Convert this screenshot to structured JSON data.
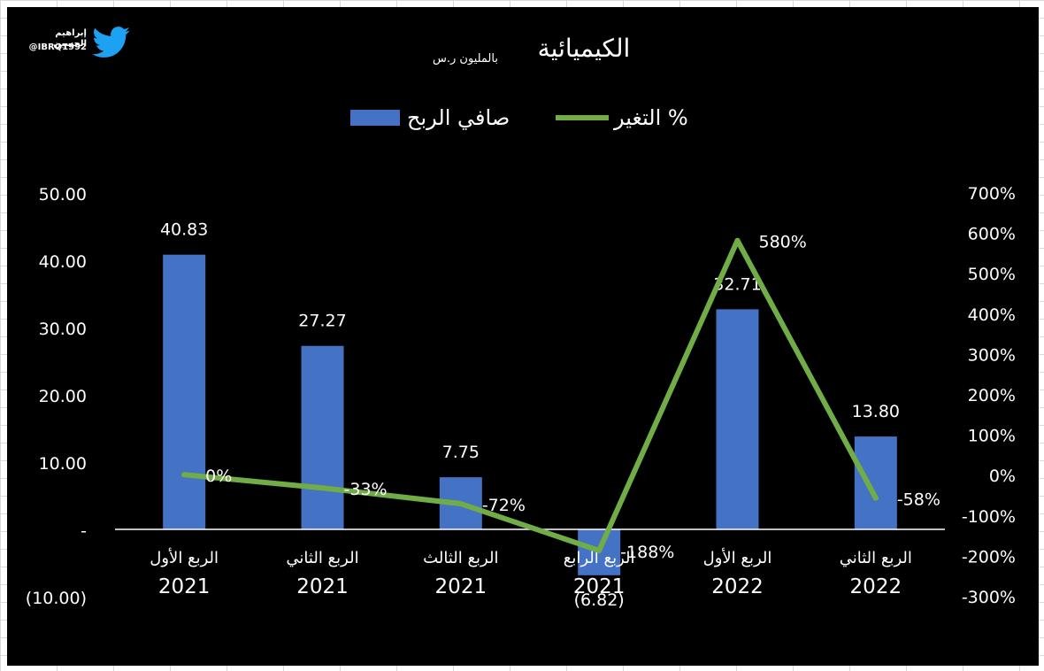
{
  "credit": {
    "name": "إبراهيم الحسين",
    "handle": "@IBRQ1992",
    "icon": "twitter-bird-icon",
    "icon_color": "#1DA1F2"
  },
  "chart_data": {
    "type": "bar",
    "title": "الكيميائية",
    "subtitle": "بالمليون ر.س",
    "categories": [
      [
        "الربع الأول",
        "2021"
      ],
      [
        "الربع الثاني",
        "2021"
      ],
      [
        "الربع الثالث",
        "2021"
      ],
      [
        "الربع الرابع",
        "2021"
      ],
      [
        "الربع الأول",
        "2022"
      ],
      [
        "الربع الثاني",
        "2022"
      ]
    ],
    "series": [
      {
        "name": "صافي الربح",
        "kind": "bar",
        "axis": "left",
        "color": "#4472C4",
        "values": [
          40.83,
          27.27,
          7.75,
          -6.82,
          32.71,
          13.8
        ],
        "labels": [
          "40.83",
          "27.27",
          "7.75",
          "(6.82)",
          "32.71",
          "13.80"
        ]
      },
      {
        "name": "التغير %",
        "kind": "line",
        "axis": "right",
        "color": "#70AD47",
        "values": [
          0,
          -33,
          -72,
          -188,
          580,
          -58
        ],
        "labels": [
          "0%",
          "-33%",
          "-72%",
          "-188%",
          "580%",
          "-58%"
        ]
      }
    ],
    "y_left": {
      "range": [
        -10,
        50
      ],
      "ticks": [
        50,
        40,
        30,
        20,
        10,
        0,
        -10
      ],
      "tick_labels": [
        "50.00",
        "40.00",
        "30.00",
        "20.00",
        "10.00",
        "-",
        "(10.00)"
      ]
    },
    "y_right": {
      "range": [
        -300,
        700
      ],
      "ticks": [
        700,
        600,
        500,
        400,
        300,
        200,
        100,
        0,
        -100,
        -200,
        -300
      ],
      "tick_labels": [
        "700%",
        "600%",
        "500%",
        "400%",
        "300%",
        "200%",
        "100%",
        "0%",
        "-100%",
        "-200%",
        "-300%"
      ]
    },
    "legend_position": "top-center",
    "grid": false,
    "colors": {
      "background": "#000000",
      "text": "#ffffff",
      "bar": "#4472C4",
      "line": "#70AD47",
      "axis_line": "#ffffff"
    }
  }
}
